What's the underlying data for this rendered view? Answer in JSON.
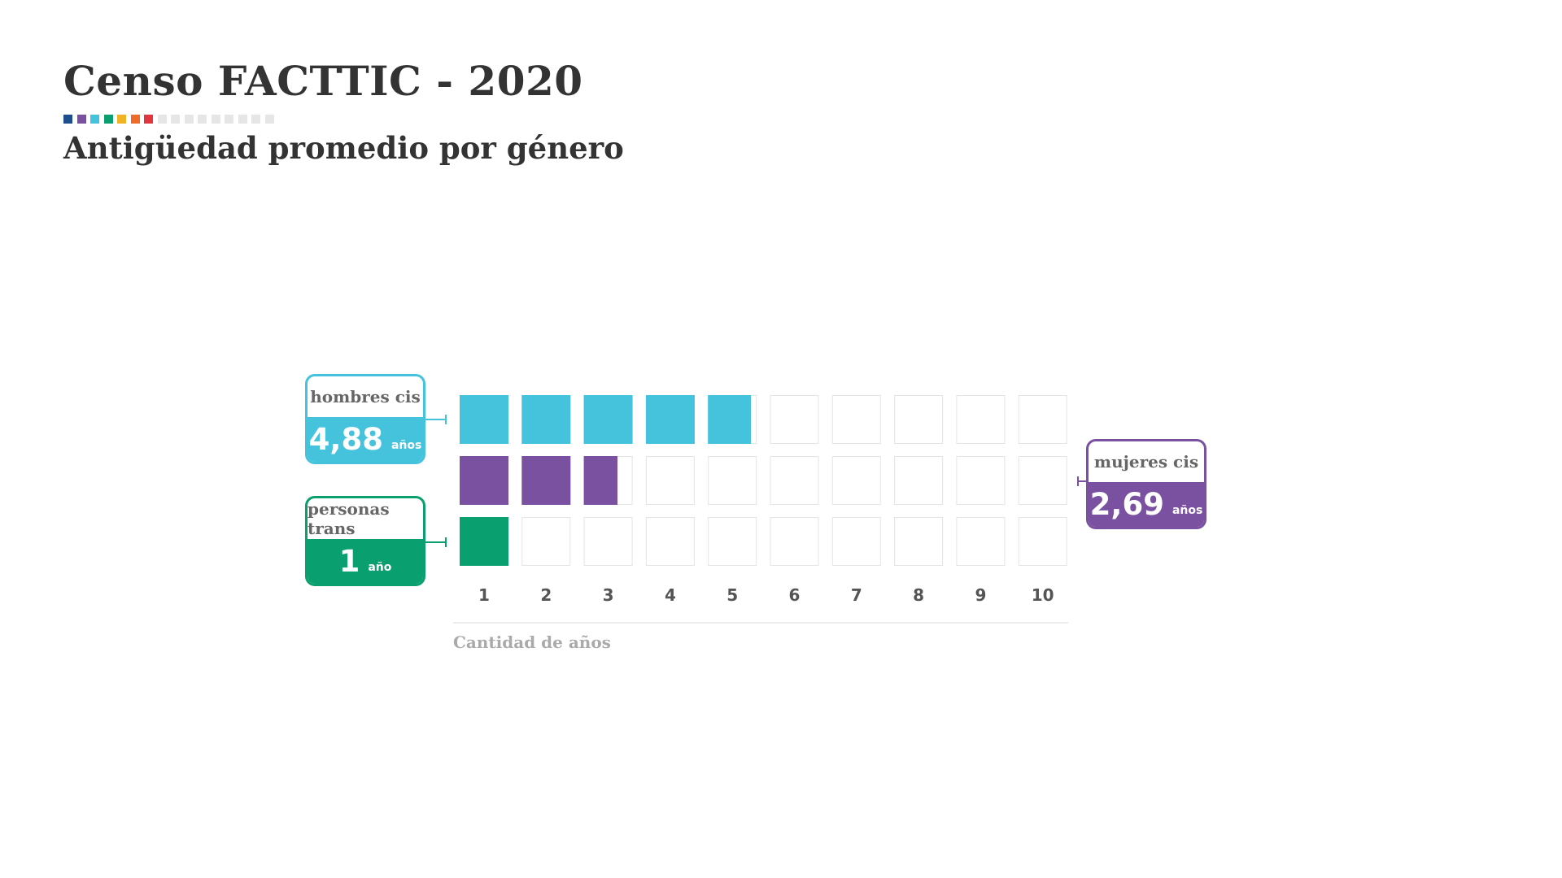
{
  "header": {
    "title": "Censo FACTTIC - 2020",
    "subtitle": "Antigüedad promedio por género",
    "swatch_colors": [
      "#1f4e8c",
      "#7a51a1",
      "#45c3dc",
      "#0a9f6f",
      "#f0b323",
      "#ef6b2a",
      "#e0373f",
      "#e6e6e6",
      "#e6e6e6",
      "#e6e6e6",
      "#e6e6e6",
      "#e6e6e6",
      "#e6e6e6",
      "#e6e6e6",
      "#e6e6e6",
      "#e6e6e6"
    ]
  },
  "chart_data": {
    "type": "bar",
    "title": "Antigüedad promedio por género",
    "xlabel": "Cantidad de años",
    "ylabel": "",
    "categories": [
      "1",
      "2",
      "3",
      "4",
      "5",
      "6",
      "7",
      "8",
      "9",
      "10"
    ],
    "xlim": [
      0,
      10
    ],
    "grid": true,
    "series": [
      {
        "name": "hombres cis",
        "value": 4.88,
        "value_label": "4,88",
        "unit": "años",
        "color": "#45c3dc"
      },
      {
        "name": "mujeres cis",
        "value": 2.69,
        "value_label": "2,69",
        "unit": "años",
        "color": "#7a51a1"
      },
      {
        "name": "personas trans",
        "value": 1,
        "value_label": "1",
        "unit": "año",
        "color": "#0a9f6f"
      }
    ],
    "empty_cell_border": "#e4e4e4"
  }
}
